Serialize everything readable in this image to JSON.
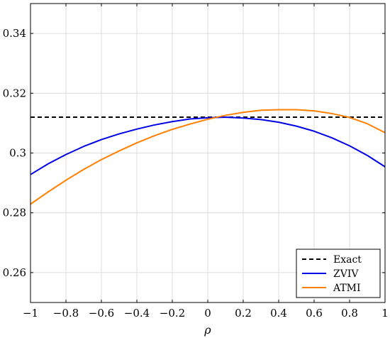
{
  "chart_data": {
    "type": "line",
    "title": "",
    "xlabel": "ρ",
    "ylabel": "",
    "xlim": [
      -1,
      1
    ],
    "ylim": [
      0.25,
      0.35
    ],
    "xticks": [
      -1,
      -0.8,
      -0.6,
      -0.4,
      -0.2,
      0,
      0.2,
      0.4,
      0.6,
      0.8,
      1
    ],
    "xtick_labels": [
      "−1",
      "−0.8",
      "−0.6",
      "−0.4",
      "−0.2",
      "0",
      "0.2",
      "0.4",
      "0.6",
      "0.8",
      "1"
    ],
    "yticks": [
      0.26,
      0.28,
      0.3,
      0.32,
      0.34
    ],
    "ytick_labels": [
      "0.26",
      "0.28",
      "0.3",
      "0.32",
      "0.34"
    ],
    "grid": true,
    "legend_position": "bottom-right",
    "series": [
      {
        "name": "Exact",
        "color": "#000000",
        "dash": "dashed",
        "x": [
          -1,
          1
        ],
        "y": [
          0.312,
          0.312
        ]
      },
      {
        "name": "ZVIV",
        "color": "#0000e6",
        "dash": "solid",
        "x": [
          -1,
          -0.9,
          -0.8,
          -0.7,
          -0.6,
          -0.5,
          -0.4,
          -0.3,
          -0.2,
          -0.1,
          0,
          0.1,
          0.2,
          0.3,
          0.4,
          0.5,
          0.6,
          0.7,
          0.8,
          0.9,
          1
        ],
        "y": [
          0.2928,
          0.2964,
          0.2995,
          0.3022,
          0.3045,
          0.3064,
          0.308,
          0.3094,
          0.3105,
          0.3114,
          0.3118,
          0.312,
          0.3117,
          0.3112,
          0.3103,
          0.309,
          0.3073,
          0.3051,
          0.3024,
          0.2992,
          0.2954
        ]
      },
      {
        "name": "ATMI",
        "color": "#ff8000",
        "dash": "solid",
        "x": [
          -1,
          -0.9,
          -0.8,
          -0.7,
          -0.6,
          -0.5,
          -0.4,
          -0.3,
          -0.2,
          -0.1,
          0,
          0.1,
          0.2,
          0.3,
          0.4,
          0.5,
          0.6,
          0.7,
          0.8,
          0.9,
          1
        ],
        "y": [
          0.2829,
          0.287,
          0.2909,
          0.2945,
          0.2978,
          0.3007,
          0.3034,
          0.3058,
          0.3079,
          0.3097,
          0.3113,
          0.3126,
          0.3136,
          0.3143,
          0.3145,
          0.3145,
          0.3141,
          0.3132,
          0.3119,
          0.3098,
          0.3068
        ]
      }
    ]
  }
}
